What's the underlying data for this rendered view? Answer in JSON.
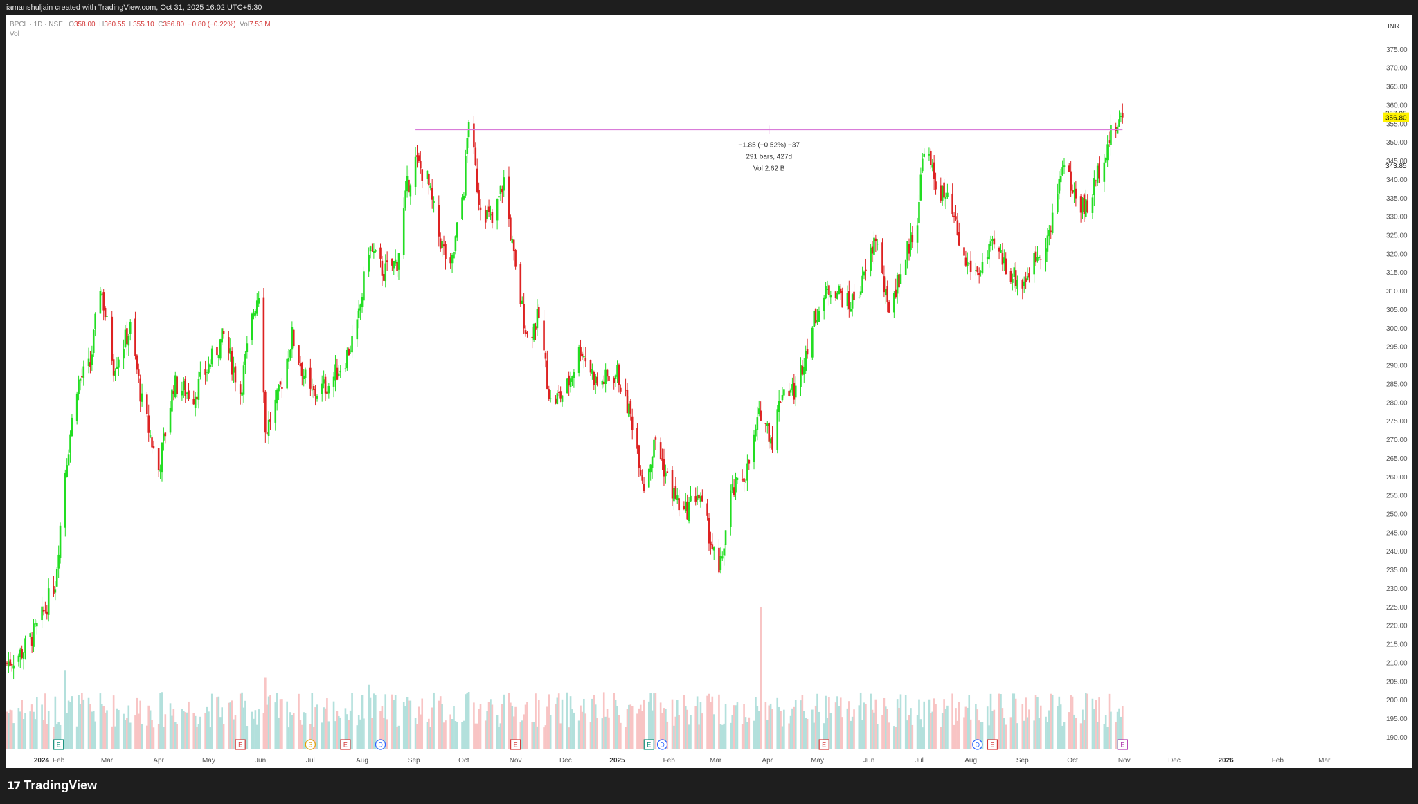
{
  "header": {
    "credit": "iamanshuljain created with TradingView.com, Oct 31, 2025 16:02 UTC+5:30"
  },
  "legend": {
    "symbol": "BPCL · 1D · NSE",
    "open_label": "O",
    "open": "358.00",
    "high_label": "H",
    "high": "360.55",
    "low_label": "L",
    "low": "355.10",
    "close_label": "C",
    "close": "356.80",
    "change": "−0.80 (−0.22%)",
    "vol_label": "Vol",
    "vol": "7.53 M",
    "row2": "Vol"
  },
  "currency": "INR",
  "footer": {
    "logo_mark": "17",
    "brand": "TradingView"
  },
  "colors": {
    "up": "#22dd22",
    "down": "#dd2222",
    "vol_up": "#b3e0dc",
    "vol_down": "#f8c4c4",
    "hline": "#d97cd9",
    "last_price_bg": "#fff200"
  },
  "chart_data": {
    "type": "candlestick",
    "ylim": [
      187,
      380
    ],
    "y_ticks": [
      "375.00",
      "370.00",
      "365.00",
      "360.00",
      "355.00",
      "350.00",
      "345.00",
      "340.00",
      "335.00",
      "330.00",
      "325.00",
      "320.00",
      "315.00",
      "310.00",
      "305.00",
      "300.00",
      "295.00",
      "290.00",
      "285.00",
      "280.00",
      "275.00",
      "270.00",
      "265.00",
      "260.00",
      "255.00",
      "250.00",
      "245.00",
      "240.00",
      "235.00",
      "230.00",
      "225.00",
      "220.00",
      "215.00",
      "210.00",
      "205.00",
      "200.00",
      "195.00",
      "190.00"
    ],
    "x_ticks": [
      {
        "label": "2024",
        "bold": true
      },
      {
        "label": "Feb"
      },
      {
        "label": "Mar"
      },
      {
        "label": "Apr"
      },
      {
        "label": "May"
      },
      {
        "label": "Jun"
      },
      {
        "label": "Jul"
      },
      {
        "label": "Aug"
      },
      {
        "label": "Sep"
      },
      {
        "label": "Oct"
      },
      {
        "label": "Nov"
      },
      {
        "label": "Dec"
      },
      {
        "label": "2025",
        "bold": true
      },
      {
        "label": "Feb"
      },
      {
        "label": "Mar"
      },
      {
        "label": "Apr"
      },
      {
        "label": "May"
      },
      {
        "label": "Jun"
      },
      {
        "label": "Jul"
      },
      {
        "label": "Aug"
      },
      {
        "label": "Sep"
      },
      {
        "label": "Oct"
      },
      {
        "label": "Nov"
      },
      {
        "label": "Dec"
      },
      {
        "label": "2026",
        "bold": true
      },
      {
        "label": "Feb"
      },
      {
        "label": "Mar"
      }
    ],
    "price_path": [
      {
        "date": "2024-01-01",
        "close": 210
      },
      {
        "date": "2024-01-10",
        "close": 213
      },
      {
        "date": "2024-01-20",
        "close": 220
      },
      {
        "date": "2024-01-30",
        "close": 232
      },
      {
        "date": "2024-02-05",
        "close": 262
      },
      {
        "date": "2024-02-12",
        "close": 285
      },
      {
        "date": "2024-02-20",
        "close": 290
      },
      {
        "date": "2024-02-26",
        "close": 312
      },
      {
        "date": "2024-03-05",
        "close": 290
      },
      {
        "date": "2024-03-15",
        "close": 300
      },
      {
        "date": "2024-03-22",
        "close": 280
      },
      {
        "date": "2024-04-01",
        "close": 262
      },
      {
        "date": "2024-04-10",
        "close": 285
      },
      {
        "date": "2024-04-22",
        "close": 282
      },
      {
        "date": "2024-05-01",
        "close": 290
      },
      {
        "date": "2024-05-10",
        "close": 298
      },
      {
        "date": "2024-05-20",
        "close": 283
      },
      {
        "date": "2024-05-28",
        "close": 305
      },
      {
        "date": "2024-06-01",
        "close": 312
      },
      {
        "date": "2024-06-04",
        "close": 272
      },
      {
        "date": "2024-06-12",
        "close": 282
      },
      {
        "date": "2024-06-20",
        "close": 298
      },
      {
        "date": "2024-07-01",
        "close": 282
      },
      {
        "date": "2024-07-12",
        "close": 285
      },
      {
        "date": "2024-07-22",
        "close": 292
      },
      {
        "date": "2024-07-29",
        "close": 300
      },
      {
        "date": "2024-08-05",
        "close": 322
      },
      {
        "date": "2024-08-14",
        "close": 315
      },
      {
        "date": "2024-08-22",
        "close": 318
      },
      {
        "date": "2024-08-28",
        "close": 338
      },
      {
        "date": "2024-09-02",
        "close": 345
      },
      {
        "date": "2024-09-09",
        "close": 340
      },
      {
        "date": "2024-09-16",
        "close": 325
      },
      {
        "date": "2024-09-23",
        "close": 315
      },
      {
        "date": "2024-10-01",
        "close": 338
      },
      {
        "date": "2024-10-04",
        "close": 357
      },
      {
        "date": "2024-10-10",
        "close": 335
      },
      {
        "date": "2024-10-18",
        "close": 328
      },
      {
        "date": "2024-10-25",
        "close": 340
      },
      {
        "date": "2024-11-01",
        "close": 315
      },
      {
        "date": "2024-11-08",
        "close": 298
      },
      {
        "date": "2024-11-15",
        "close": 303
      },
      {
        "date": "2024-11-22",
        "close": 280
      },
      {
        "date": "2024-12-01",
        "close": 283
      },
      {
        "date": "2024-12-10",
        "close": 295
      },
      {
        "date": "2024-12-20",
        "close": 285
      },
      {
        "date": "2025-01-01",
        "close": 288
      },
      {
        "date": "2025-01-10",
        "close": 275
      },
      {
        "date": "2025-01-17",
        "close": 258
      },
      {
        "date": "2025-01-24",
        "close": 270
      },
      {
        "date": "2025-02-01",
        "close": 258
      },
      {
        "date": "2025-02-10",
        "close": 250
      },
      {
        "date": "2025-02-18",
        "close": 256
      },
      {
        "date": "2025-02-25",
        "close": 245
      },
      {
        "date": "2025-03-03",
        "close": 233
      },
      {
        "date": "2025-03-10",
        "close": 255
      },
      {
        "date": "2025-03-20",
        "close": 262
      },
      {
        "date": "2025-03-28",
        "close": 278
      },
      {
        "date": "2025-04-04",
        "close": 270
      },
      {
        "date": "2025-04-10",
        "close": 284
      },
      {
        "date": "2025-04-18",
        "close": 283
      },
      {
        "date": "2025-04-25",
        "close": 296
      },
      {
        "date": "2025-05-01",
        "close": 305
      },
      {
        "date": "2025-05-10",
        "close": 312
      },
      {
        "date": "2025-05-20",
        "close": 306
      },
      {
        "date": "2025-05-28",
        "close": 312
      },
      {
        "date": "2025-06-05",
        "close": 325
      },
      {
        "date": "2025-06-12",
        "close": 305
      },
      {
        "date": "2025-06-20",
        "close": 315
      },
      {
        "date": "2025-06-30",
        "close": 330
      },
      {
        "date": "2025-07-04",
        "close": 350
      },
      {
        "date": "2025-07-10",
        "close": 340
      },
      {
        "date": "2025-07-20",
        "close": 332
      },
      {
        "date": "2025-07-28",
        "close": 318
      },
      {
        "date": "2025-08-05",
        "close": 315
      },
      {
        "date": "2025-08-15",
        "close": 322
      },
      {
        "date": "2025-08-25",
        "close": 315
      },
      {
        "date": "2025-09-01",
        "close": 312
      },
      {
        "date": "2025-09-10",
        "close": 320
      },
      {
        "date": "2025-09-18",
        "close": 326
      },
      {
        "date": "2025-09-25",
        "close": 345
      },
      {
        "date": "2025-10-03",
        "close": 335
      },
      {
        "date": "2025-10-10",
        "close": 332
      },
      {
        "date": "2025-10-18",
        "close": 345
      },
      {
        "date": "2025-10-24",
        "close": 352
      },
      {
        "date": "2025-10-31",
        "close": 356.8
      }
    ],
    "volume_note": "volume bars at bottom, unlabeled scale; spike in late Mar 2025",
    "horizontal_ray": {
      "from": "2024-09-02",
      "to": "2025-10-31",
      "price": 353.5
    },
    "measure": {
      "line1": "−1.85 (−0.52%) −37",
      "line2": "291 bars, 427d",
      "line3": "Vol 2.62 B"
    },
    "price_labels": [
      {
        "text": "357.95",
        "value": 357.95,
        "style": "plain"
      },
      {
        "text": "356.80",
        "value": 356.8,
        "style": "highlight"
      },
      {
        "text": "343.85",
        "value": 343.85,
        "style": "plain"
      }
    ],
    "events": [
      {
        "date": "2024-02-01",
        "letter": "E",
        "color": "#0f8f7a"
      },
      {
        "date": "2024-05-20",
        "letter": "E",
        "color": "#d43b3b"
      },
      {
        "date": "2024-07-01",
        "letter": "S",
        "color": "#e0a000"
      },
      {
        "date": "2024-07-22",
        "letter": "E",
        "color": "#d43b3b"
      },
      {
        "date": "2024-08-12",
        "letter": "D",
        "color": "#2962ff"
      },
      {
        "date": "2024-11-01",
        "letter": "E",
        "color": "#d43b3b"
      },
      {
        "date": "2025-01-20",
        "letter": "E",
        "color": "#0f8f7a"
      },
      {
        "date": "2025-01-28",
        "letter": "D",
        "color": "#2962ff"
      },
      {
        "date": "2025-05-05",
        "letter": "E",
        "color": "#d43b3b"
      },
      {
        "date": "2025-08-05",
        "letter": "D",
        "color": "#2962ff"
      },
      {
        "date": "2025-08-14",
        "letter": "E",
        "color": "#d43b3b"
      },
      {
        "date": "2025-10-31",
        "letter": "E",
        "color": "#b03ab0"
      }
    ]
  }
}
